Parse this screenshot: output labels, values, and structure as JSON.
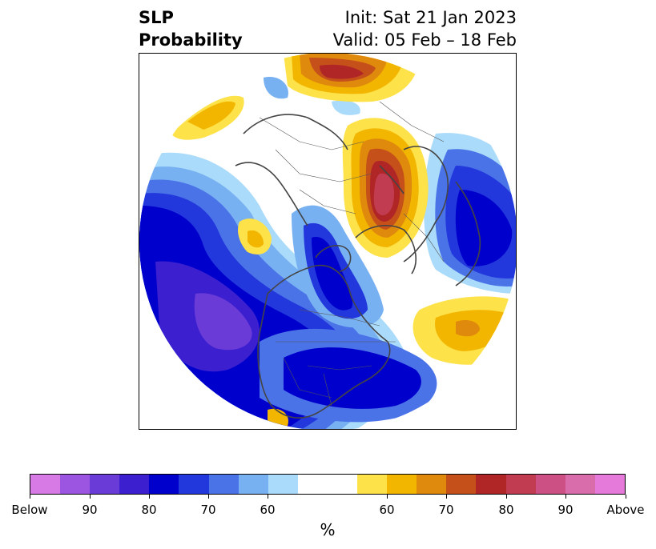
{
  "title": {
    "left_line1": "SLP",
    "left_line2": "Probability",
    "right_line1": "Init: Sat 21 Jan 2023",
    "right_line2": "Valid: 05 Feb – 18 Feb"
  },
  "map": {
    "projection": "polar stereographic (North Pole)",
    "variable": "sea level pressure probability",
    "below_normal_color": "#0000cd",
    "above_normal_color": "#b22222"
  },
  "colorbar": {
    "unit_label": "%",
    "colors": [
      "#d87ae6",
      "#9b55e0",
      "#6b3bd8",
      "#3c1fcf",
      "#0000cd",
      "#2238dc",
      "#4b73e8",
      "#78b1f2",
      "#aadbfa",
      "#ffffff",
      "#ffffff",
      "#fde24a",
      "#f3b600",
      "#df8a0c",
      "#c5501a",
      "#b02525",
      "#c13c50",
      "#cd5084",
      "#d96dac",
      "#e67ada"
    ],
    "tick_labels": [
      "Below",
      "90",
      "80",
      "70",
      "60",
      "60",
      "70",
      "80",
      "90",
      "Above"
    ]
  }
}
